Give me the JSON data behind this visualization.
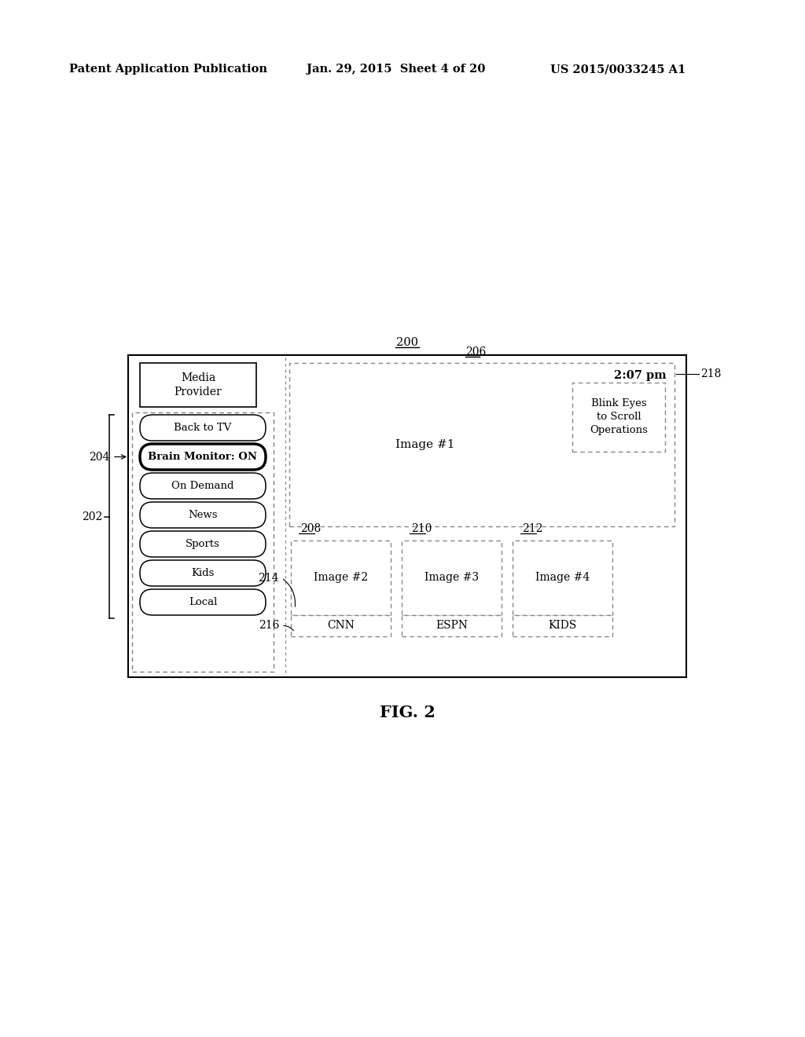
{
  "header_left": "Patent Application Publication",
  "header_mid": "Jan. 29, 2015  Sheet 4 of 20",
  "header_right": "US 2015/0033245 A1",
  "fig_label": "FIG. 2",
  "label_200": "200",
  "label_202": "202",
  "label_204": "204",
  "label_206": "206",
  "label_208": "208",
  "label_210": "210",
  "label_212": "212",
  "label_214": "214",
  "label_216": "216",
  "label_218": "218",
  "menu_item_top": "Media\nProvider",
  "menu_items_pills": [
    "Back to TV",
    "Brain Monitor: ON",
    "On Demand",
    "News",
    "Sports",
    "Kids",
    "Local"
  ],
  "image_labels": [
    "Image #1",
    "Image #2",
    "Image #3",
    "Image #4"
  ],
  "channel_labels": [
    "CNN",
    "ESPN",
    "KIDS"
  ],
  "blink_text": "Blink Eyes\nto Scroll\nOperations",
  "time_text": "2:07 pm",
  "bg_color": "#ffffff"
}
